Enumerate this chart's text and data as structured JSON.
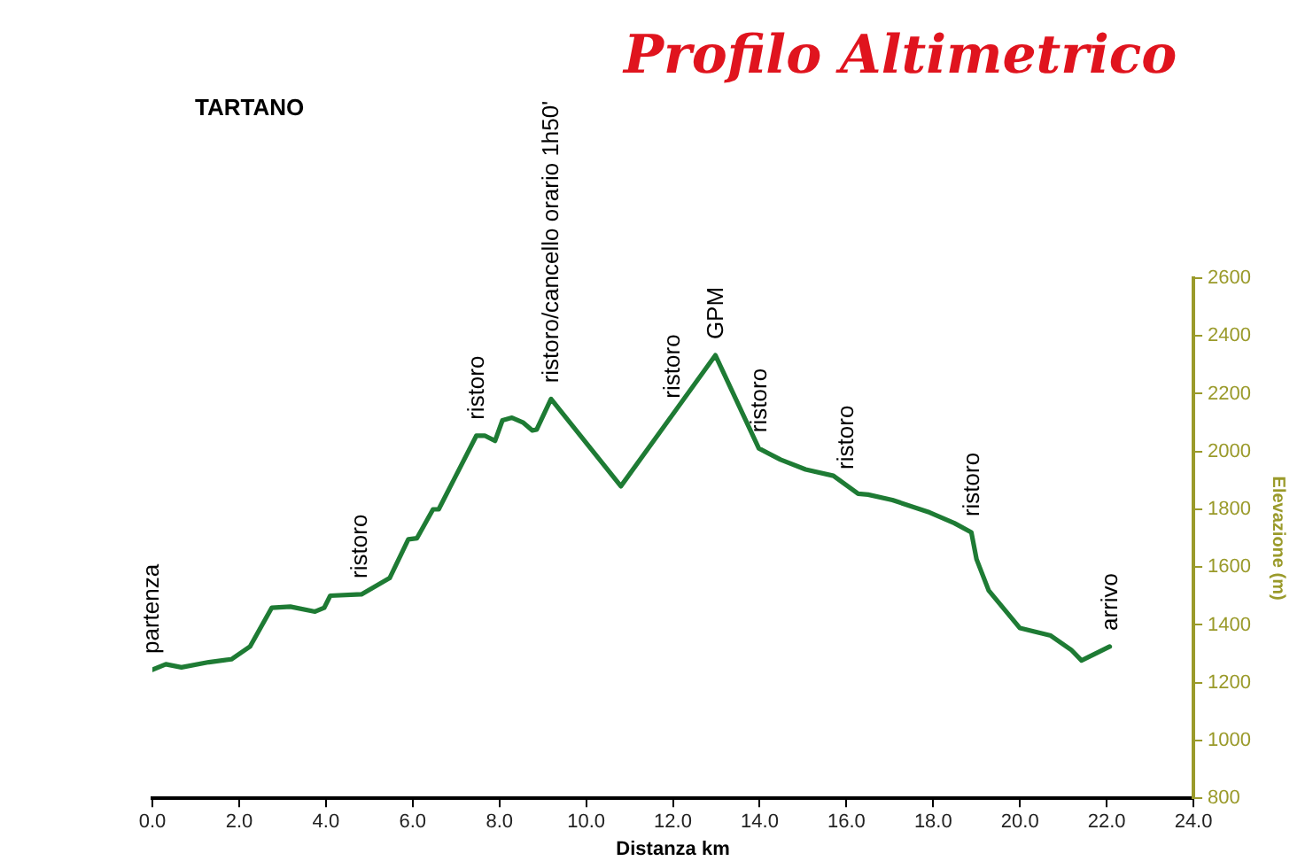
{
  "chart_data": {
    "type": "line",
    "title": "Profilo Altimetrico",
    "subtitle": "TARTANO",
    "xlabel": "Distanza km",
    "ylabel": "Elevazione (m)",
    "xlim": [
      0,
      24
    ],
    "xticks": [
      {
        "value": 0,
        "label": "0.0"
      },
      {
        "value": 2,
        "label": "2.0"
      },
      {
        "value": 4,
        "label": "4.0"
      },
      {
        "value": 6,
        "label": "6.0"
      },
      {
        "value": 8,
        "label": "8.0"
      },
      {
        "value": 10,
        "label": "10.0"
      },
      {
        "value": 12,
        "label": "12.0"
      },
      {
        "value": 14,
        "label": "14.0"
      },
      {
        "value": 16,
        "label": "16.0"
      },
      {
        "value": 18,
        "label": "18.0"
      },
      {
        "value": 20,
        "label": "20.0"
      },
      {
        "value": 22,
        "label": "22.0"
      },
      {
        "value": 24,
        "label": "24.0"
      }
    ],
    "ylim": [
      800,
      2600
    ],
    "yticks": [
      800,
      1000,
      1200,
      1400,
      1600,
      1800,
      2000,
      2200,
      2400,
      2600
    ],
    "grid": false,
    "legend": false,
    "marker": "none",
    "line_style": "solid",
    "x": [
      0,
      0.31,
      0.67,
      1.3,
      1.82,
      2.25,
      2.75,
      3.18,
      3.75,
      3.96,
      4.1,
      4.82,
      5.47,
      5.9,
      6.1,
      6.47,
      6.6,
      7.47,
      7.66,
      7.9,
      8.07,
      8.29,
      8.54,
      8.76,
      8.86,
      9.19,
      10.8,
      12.98,
      13.98,
      14.48,
      15.06,
      15.7,
      16.27,
      16.5,
      17.06,
      17.92,
      18.49,
      18.88,
      19.0,
      19.28,
      19.64,
      20.0,
      20.71,
      21.18,
      21.42,
      22.07
    ],
    "series": [
      {
        "color": "#1e7b34",
        "values": [
          1245,
          1264,
          1253,
          1271,
          1281,
          1325,
          1459,
          1463,
          1446,
          1459,
          1501,
          1506,
          1562,
          1696,
          1700,
          1800,
          1800,
          2055,
          2055,
          2037,
          2108,
          2117,
          2101,
          2073,
          2076,
          2182,
          1880,
          2333,
          2011,
          1972,
          1938,
          1916,
          1854,
          1851,
          1832,
          1789,
          1752,
          1720,
          1627,
          1519,
          1454,
          1389,
          1363,
          1314,
          1277,
          1325
        ]
      }
    ],
    "annotations": [
      {
        "text": "partenza",
        "x": 0,
        "y": 1245
      },
      {
        "text": "ristoro",
        "x": 4.8,
        "y": 1506
      },
      {
        "text": "ristoro",
        "x": 7.5,
        "y": 2055
      },
      {
        "text": "ristoro/cancello orario 1h50'",
        "x": 9.2,
        "y": 2182
      },
      {
        "text": "ristoro",
        "x": 12.0,
        "y": 2129
      },
      {
        "text": "GPM",
        "x": 13.0,
        "y": 2333
      },
      {
        "text": "ristoro",
        "x": 14.0,
        "y": 2011
      },
      {
        "text": "ristoro",
        "x": 16.0,
        "y": 1883
      },
      {
        "text": "ristoro",
        "x": 18.9,
        "y": 1720
      },
      {
        "text": "arrivo",
        "x": 22.1,
        "y": 1325
      }
    ]
  }
}
